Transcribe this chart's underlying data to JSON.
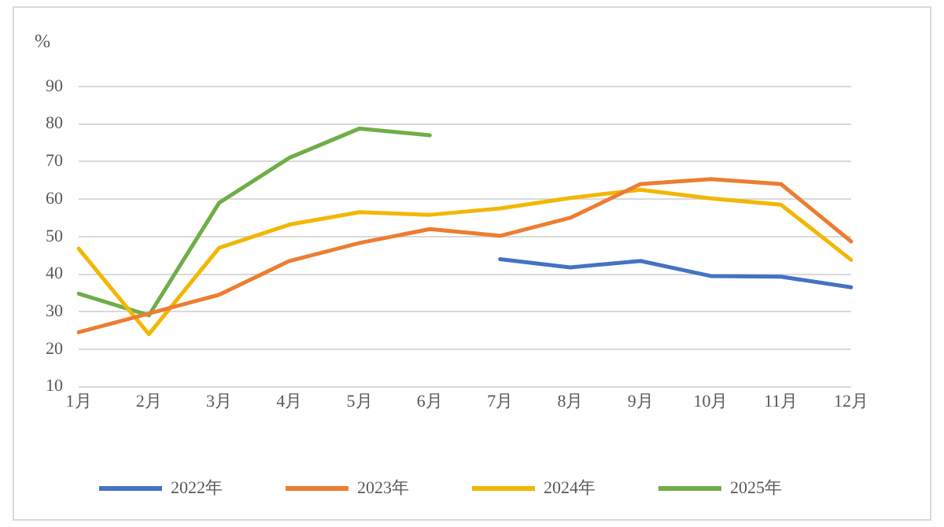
{
  "chart_data": {
    "type": "line",
    "ylabel": "%",
    "categories": [
      "1月",
      "2月",
      "3月",
      "4月",
      "5月",
      "6月",
      "7月",
      "8月",
      "9月",
      "10月",
      "11月",
      "12月"
    ],
    "series": [
      {
        "name": "2022年",
        "color": "#4472c4",
        "values": [
          null,
          null,
          null,
          null,
          null,
          null,
          44,
          41.8,
          43.5,
          39.5,
          39.3,
          36.5
        ]
      },
      {
        "name": "2023年",
        "color": "#ed7d31",
        "values": [
          24.5,
          29.5,
          34.5,
          43.5,
          48.3,
          52,
          50.2,
          55,
          64,
          65.3,
          64,
          48.7
        ]
      },
      {
        "name": "2024年",
        "color": "#f2b705",
        "values": [
          46.8,
          24,
          47,
          53.2,
          56.5,
          55.8,
          57.5,
          60.3,
          62.5,
          60.2,
          58.5,
          43.8
        ]
      },
      {
        "name": "2025年",
        "color": "#70ad47",
        "values": [
          34.8,
          29,
          59,
          71,
          78.8,
          77,
          null,
          null,
          null,
          null,
          null,
          null
        ]
      }
    ],
    "ylim": [
      10,
      90
    ],
    "yticks": [
      10,
      20,
      30,
      40,
      50,
      60,
      70,
      80,
      90
    ],
    "grid": "y",
    "legend": "bottom",
    "marker": "none",
    "line_style": "solid"
  }
}
